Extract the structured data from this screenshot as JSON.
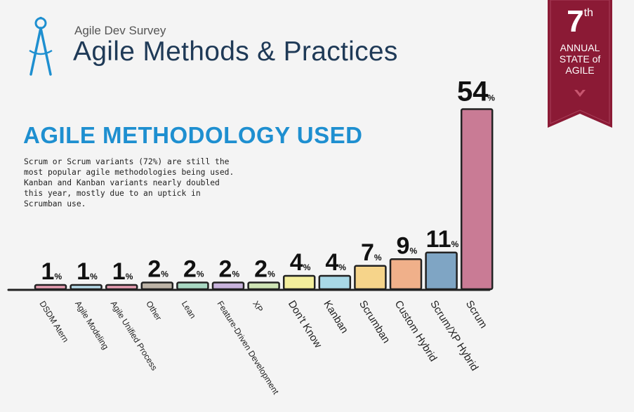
{
  "header": {
    "kicker": "Agile Dev Survey",
    "title": "Agile Methods & Practices"
  },
  "badge": {
    "number": "7",
    "suffix": "th",
    "line1": "ANNUAL",
    "line2": "STATE of",
    "line3": "AGILE"
  },
  "section": {
    "title": "AGILE METHODOLOGY USED",
    "description": "Scrum or Scrum variants (72%) are still the\nmost popular agile methodologies being used.\nKanban and Kanban variants nearly doubled\nthis year, mostly due to an uptick in\nScrumban use."
  },
  "colors": {
    "accent": "#1e8fd0",
    "title": "#1f3a57",
    "ribbon": "#8b1a35"
  },
  "chart_data": {
    "type": "bar",
    "categories": [
      "DSDM Atern",
      "Agile Modeling",
      "Agile Unified Process",
      "Other",
      "Lean",
      "Feature-Driven Development",
      "XP",
      "Don't Know",
      "Kanban",
      "Scrumban",
      "Custom Hybrid",
      "Scrum/XP Hybrid",
      "Scrum"
    ],
    "values": [
      1,
      1,
      1,
      2,
      2,
      2,
      2,
      4,
      4,
      7,
      9,
      11,
      54
    ],
    "unit": "%",
    "bar_colors": [
      "#e9a0b4",
      "#b8dcea",
      "#e9a0b4",
      "#bdb3a6",
      "#a9d8c3",
      "#c9b3dd",
      "#cfe4b5",
      "#f3ee9c",
      "#a8d8e6",
      "#f6d48a",
      "#f0b08a",
      "#7fa5c4",
      "#c97b95"
    ],
    "grid": false,
    "legend": "none"
  }
}
